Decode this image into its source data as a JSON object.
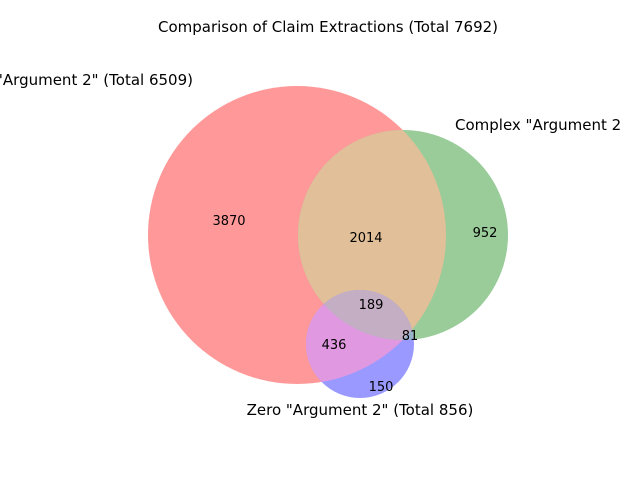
{
  "title": "Comparison of Claim Extractions (Total 7692)",
  "sets": {
    "simple": {
      "label": "\"Argument 2\" (Total 6509)",
      "color": "#ff9999"
    },
    "complex": {
      "label": "Complex \"Argument 2",
      "color": "#99cc99"
    },
    "zero": {
      "label": "Zero \"Argument 2\" (Total 856)",
      "color": "#9999ff"
    }
  },
  "regions": {
    "simple_only": "3870",
    "simple_complex": "2014",
    "complex_only": "952",
    "all_three": "189",
    "complex_zero": "81",
    "simple_zero": "436",
    "zero_only": "150"
  },
  "overlap_colors": {
    "simple_complex": "#e0bf99",
    "simple_zero": "#e099e0",
    "complex_zero": "#99b3cc",
    "all_three": "#c4aec4"
  }
}
